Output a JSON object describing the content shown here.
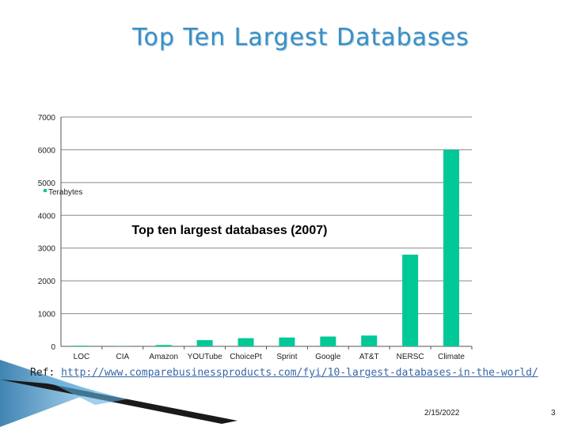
{
  "slide": {
    "title": "Top Ten Largest Databases",
    "reference_prefix": "Ref: ",
    "reference_link": "http://www.comparebusinessproducts.com/fyi/10-largest-databases-in-the-world/",
    "date": "2/15/2022",
    "page_number": "3"
  },
  "chart_data": {
    "type": "bar",
    "title": "Top ten largest databases (2007)",
    "categories": [
      "LOC",
      "CIA",
      "Amazon",
      "YOUTube",
      "ChoicePt",
      "Sprint",
      "Google",
      "AT&T",
      "NERSC",
      "Climate"
    ],
    "series": [
      {
        "name": "Terabytes",
        "values": [
          20,
          5,
          42,
          190,
          250,
          270,
          300,
          330,
          2800,
          6000
        ]
      }
    ],
    "ylim": [
      0,
      7000
    ],
    "yticks": [
      0,
      1000,
      2000,
      3000,
      4000,
      5000,
      6000,
      7000
    ],
    "xlabel": "",
    "ylabel": "",
    "grid": true,
    "legend_position": "left",
    "bar_color": "#00c896"
  }
}
